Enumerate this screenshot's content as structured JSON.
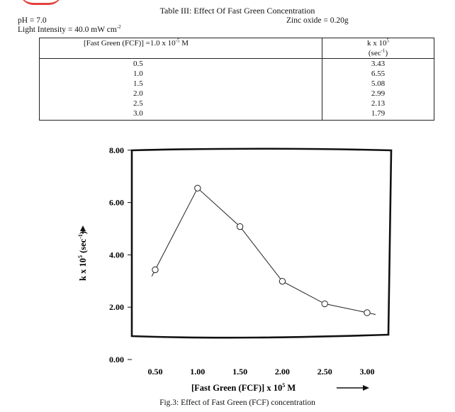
{
  "table": {
    "title": "Table III: Effect Of Fast Green Concentration",
    "ph": "pH = 7.0",
    "light_intensity": "Light Intensity = 40.0 mW cm",
    "light_intensity_exp": "-2",
    "zinc_oxide": "Zinc oxide = 0.20g",
    "col1_header": "[Fast Green (FCF)] =1.0 x 10",
    "col1_header_exp": "-5",
    "col1_header_unit": " M",
    "col2_header": "k x 10",
    "col2_header_exp": "5",
    "col2_unit": "(sec",
    "col2_unit_exp": "-1",
    "col2_unit_close": ")",
    "rows": [
      {
        "conc": "0.5",
        "k": "3.43"
      },
      {
        "conc": "1.0",
        "k": "6.55"
      },
      {
        "conc": "1.5",
        "k": "5.08"
      },
      {
        "conc": "2.0",
        "k": "2.99"
      },
      {
        "conc": "2.5",
        "k": "2.13"
      },
      {
        "conc": "3.0",
        "k": "1.79"
      }
    ]
  },
  "chart_data": {
    "type": "line",
    "x": [
      0.5,
      1.0,
      1.5,
      2.0,
      2.5,
      3.0
    ],
    "y": [
      3.43,
      6.55,
      5.08,
      2.99,
      2.13,
      1.79
    ],
    "xlabel": "[Fast Green (FCF)] x 10",
    "xlabel_exp": "5",
    "xlabel_unit": " M",
    "ylabel": "k x 10",
    "ylabel_exp": "5",
    "ylabel_unit": " (sec",
    "ylabel_unit_exp": "-1",
    "ylabel_unit_close": ")",
    "x_ticks": [
      "0.50",
      "1.00",
      "1.50",
      "2.00",
      "2.50",
      "3.00"
    ],
    "y_ticks": [
      "0.00",
      "2.00",
      "4.00",
      "6.00",
      "8.00"
    ],
    "ylim": [
      0,
      8
    ],
    "marker": "open-circle",
    "grid": false
  },
  "caption": "Fig.3: Effect of Fast Green (FCF) concentration"
}
